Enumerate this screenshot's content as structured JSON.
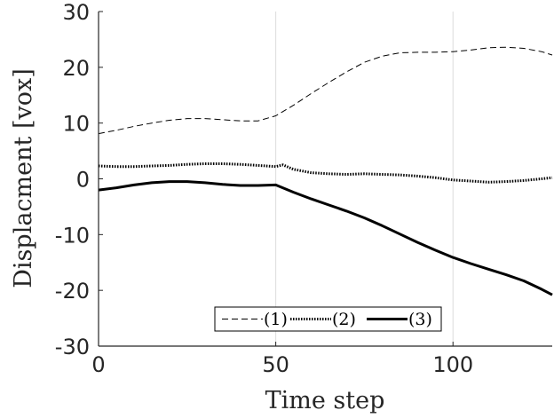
{
  "chart_data": {
    "type": "line",
    "title": "",
    "xlabel": "Time step",
    "ylabel": "Displacment [vox]",
    "xlim": [
      0,
      128
    ],
    "ylim": [
      -30,
      30
    ],
    "x_ticks": [
      0,
      50,
      100
    ],
    "x_tick_labels": [
      "0",
      "50",
      "100"
    ],
    "y_ticks": [
      -30,
      -20,
      -10,
      0,
      10,
      20,
      30
    ],
    "y_tick_labels": [
      "-30",
      "-20",
      "-10",
      "0",
      "10",
      "20",
      "30"
    ],
    "grid": "vertical lines at x ticks",
    "legend_position": "bottom-center, single row",
    "series": [
      {
        "name": "(1)",
        "style": "dashed",
        "color": "#000000",
        "x": [
          0,
          5,
          10,
          15,
          20,
          25,
          30,
          35,
          40,
          45,
          50,
          55,
          60,
          65,
          70,
          75,
          80,
          85,
          90,
          95,
          100,
          105,
          110,
          115,
          120,
          125,
          128
        ],
        "y": [
          8.1,
          8.7,
          9.4,
          10.0,
          10.5,
          10.8,
          10.8,
          10.6,
          10.4,
          10.4,
          11.3,
          13.2,
          15.3,
          17.3,
          19.2,
          20.9,
          22.0,
          22.6,
          22.7,
          22.7,
          22.8,
          23.1,
          23.5,
          23.6,
          23.4,
          22.8,
          22.2
        ]
      },
      {
        "name": "(2)",
        "style": "dotted",
        "color": "#000000",
        "x": [
          0,
          5,
          10,
          15,
          20,
          25,
          30,
          35,
          40,
          45,
          50,
          52,
          55,
          60,
          65,
          70,
          75,
          80,
          85,
          90,
          95,
          100,
          105,
          110,
          115,
          120,
          125,
          128
        ],
        "y": [
          2.3,
          2.2,
          2.2,
          2.3,
          2.4,
          2.6,
          2.7,
          2.7,
          2.6,
          2.4,
          2.2,
          2.5,
          1.7,
          1.1,
          0.9,
          0.8,
          0.9,
          0.8,
          0.7,
          0.5,
          0.2,
          -0.2,
          -0.4,
          -0.6,
          -0.5,
          -0.3,
          0.0,
          0.2
        ]
      },
      {
        "name": "(3)",
        "style": "solid",
        "color": "#000000",
        "x": [
          0,
          5,
          10,
          15,
          20,
          25,
          30,
          35,
          40,
          45,
          50,
          55,
          60,
          65,
          70,
          75,
          80,
          85,
          90,
          95,
          100,
          105,
          110,
          115,
          120,
          125,
          128
        ],
        "y": [
          -2.0,
          -1.6,
          -1.1,
          -0.7,
          -0.5,
          -0.5,
          -0.7,
          -1.0,
          -1.2,
          -1.2,
          -1.1,
          -2.4,
          -3.6,
          -4.7,
          -5.8,
          -7.0,
          -8.4,
          -9.9,
          -11.4,
          -12.8,
          -14.1,
          -15.2,
          -16.2,
          -17.2,
          -18.3,
          -19.8,
          -20.8
        ]
      }
    ]
  }
}
